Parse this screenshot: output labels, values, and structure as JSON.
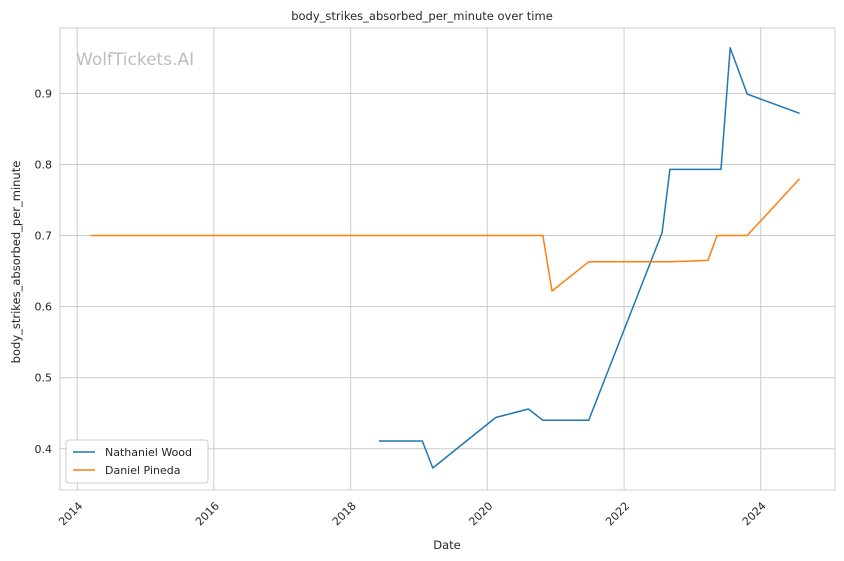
{
  "chart_data": {
    "type": "line",
    "title": "body_strikes_absorbed_per_minute over time",
    "xlabel": "Date",
    "ylabel": "body_strikes_absorbed_per_minute",
    "watermark": "WolfTickets.AI",
    "xlim": [
      "2013-10-01",
      "2025-02-01"
    ],
    "ylim": [
      0.342,
      0.992
    ],
    "x_ticks": [
      "2014",
      "2016",
      "2018",
      "2020",
      "2022",
      "2024"
    ],
    "y_ticks": [
      "0.4",
      "0.5",
      "0.6",
      "0.7",
      "0.8",
      "0.9"
    ],
    "grid": true,
    "legend": "lower-left",
    "series": [
      {
        "name": "Nathaniel Wood",
        "color": "#1f77b4",
        "points": [
          {
            "x": "2018-06-01",
            "y": 0.411
          },
          {
            "x": "2019-01-19",
            "y": 0.411
          },
          {
            "x": "2019-03-16",
            "y": 0.373
          },
          {
            "x": "2020-02-15",
            "y": 0.444
          },
          {
            "x": "2020-08-08",
            "y": 0.456
          },
          {
            "x": "2020-10-24",
            "y": 0.44
          },
          {
            "x": "2021-06-26",
            "y": 0.44
          },
          {
            "x": "2022-07-23",
            "y": 0.704
          },
          {
            "x": "2022-09-03",
            "y": 0.793
          },
          {
            "x": "2023-06-03",
            "y": 0.793
          },
          {
            "x": "2023-07-22",
            "y": 0.964
          },
          {
            "x": "2023-10-21",
            "y": 0.899
          },
          {
            "x": "2024-07-27",
            "y": 0.872
          }
        ]
      },
      {
        "name": "Daniel Pineda",
        "color": "#ff7f0e",
        "points": [
          {
            "x": "2014-03-15",
            "y": 0.7
          },
          {
            "x": "2020-10-24",
            "y": 0.7
          },
          {
            "x": "2020-12-12",
            "y": 0.622
          },
          {
            "x": "2021-06-26",
            "y": 0.663
          },
          {
            "x": "2022-09-10",
            "y": 0.663
          },
          {
            "x": "2023-03-25",
            "y": 0.665
          },
          {
            "x": "2023-05-13",
            "y": 0.7
          },
          {
            "x": "2023-10-21",
            "y": 0.7
          },
          {
            "x": "2024-07-27",
            "y": 0.78
          }
        ]
      }
    ]
  }
}
